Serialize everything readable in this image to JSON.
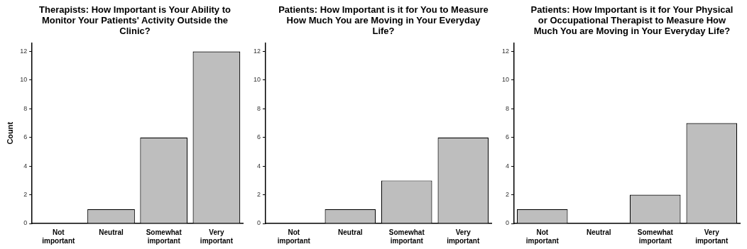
{
  "chart_data": [
    {
      "type": "bar",
      "title": "Therapists: How Important is Your Ability to Monitor Your Patients' Activity Outside the Clinic?",
      "ylabel": "Count",
      "categories": [
        "Not important",
        "Neutral",
        "Somewhat important",
        "Very important"
      ],
      "values": [
        0,
        1,
        6,
        12
      ],
      "color": "#bebebe",
      "ylim": [
        0,
        12.6
      ],
      "yticks": [
        0,
        2,
        4,
        6,
        8,
        10,
        12
      ],
      "grid": false,
      "legend": false
    },
    {
      "type": "bar",
      "title": "Patients: How Important is it for You to Measure How Much You are Moving in Your Everyday Life?",
      "categories": [
        "Not important",
        "Neutral",
        "Somewhat important",
        "Very important"
      ],
      "values": [
        0,
        1,
        3,
        6
      ],
      "color": "#bebebe",
      "ylim": [
        0,
        12.6
      ],
      "yticks": [
        0,
        2,
        4,
        6,
        8,
        10,
        12
      ],
      "grid": false,
      "legend": false
    },
    {
      "type": "bar",
      "title": "Patients: How Important is it for Your Physical or Occupational Therapist to Measure How Much You are Moving in Your Everyday Life?",
      "categories": [
        "Not important",
        "Neutral",
        "Somewhat important",
        "Very important"
      ],
      "values": [
        1,
        0,
        2,
        7
      ],
      "color": "#bebebe",
      "ylim": [
        0,
        12.6
      ],
      "yticks": [
        0,
        2,
        4,
        6,
        8,
        10,
        12
      ],
      "grid": false,
      "legend": false
    }
  ]
}
